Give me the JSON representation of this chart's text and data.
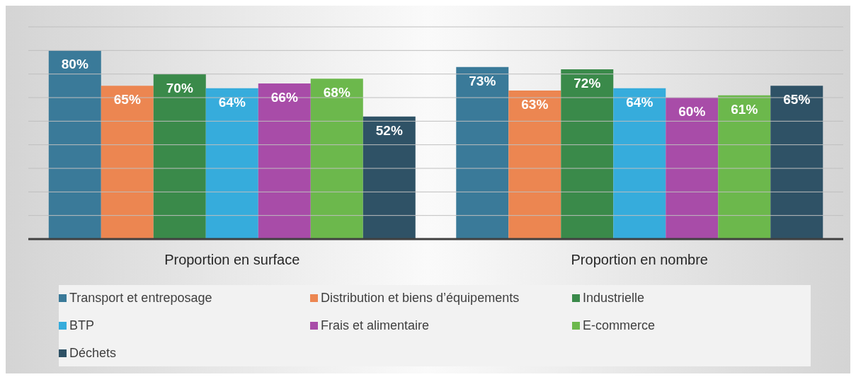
{
  "chart_data": {
    "type": "bar",
    "categories": [
      "Proportion en surface",
      "Proportion en nombre"
    ],
    "series": [
      {
        "name": "Transport et entreposage",
        "color": "#3a7a99",
        "values": [
          80,
          73
        ],
        "value_labels": [
          "80%",
          "73%"
        ]
      },
      {
        "name": "Distribution et biens d’équipements",
        "color": "#ec8651",
        "values": [
          65,
          63
        ],
        "value_labels": [
          "65%",
          "63%"
        ]
      },
      {
        "name": "Industrielle",
        "color": "#3a8a4a",
        "values": [
          70,
          72
        ],
        "value_labels": [
          "70%",
          "72%"
        ]
      },
      {
        "name": "BTP",
        "color": "#36acdc",
        "values": [
          64,
          64
        ],
        "value_labels": [
          "64%",
          "64%"
        ]
      },
      {
        "name": "Frais et alimentaire",
        "color": "#a84ca8",
        "values": [
          66,
          60
        ],
        "value_labels": [
          "66%",
          "60%"
        ]
      },
      {
        "name": "E-commerce",
        "color": "#6cb84c",
        "values": [
          68,
          61
        ],
        "value_labels": [
          "68%",
          "61%"
        ]
      },
      {
        "name": "Déchets",
        "color": "#2f5266",
        "values": [
          52,
          65
        ],
        "value_labels": [
          "52%",
          "65%"
        ]
      }
    ],
    "ylim": [
      0,
      90
    ],
    "yticks": [
      {
        "value": 0,
        "label": null
      },
      {
        "value": 10,
        "label": null
      },
      {
        "value": 20,
        "label": null
      },
      {
        "value": 30,
        "label": null
      },
      {
        "value": 40,
        "label": null
      },
      {
        "value": 50,
        "label": null
      },
      {
        "value": 60,
        "label": null
      },
      {
        "value": 70,
        "label": null
      },
      {
        "value": 80,
        "label": null
      },
      {
        "value": 90,
        "label": null
      }
    ],
    "grid": "y",
    "tick_labels": "x",
    "legend": "bottom"
  }
}
